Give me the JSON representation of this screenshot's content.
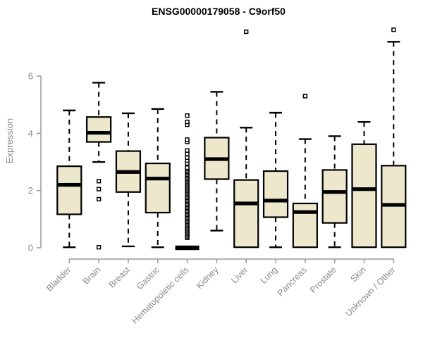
{
  "chart_data": {
    "type": "boxplot",
    "title": "ENSG00000179058 - C9orf50",
    "ylabel": "Expression",
    "xlabel": "",
    "yticks": [
      0,
      2,
      4,
      6
    ],
    "ylim": [
      -0.3,
      7.8
    ],
    "grid": false,
    "legend": "none",
    "categories": [
      "Bladder",
      "Brain",
      "Breast",
      "Gastric",
      "Hematopoietic cells",
      "Kidney",
      "Liver",
      "Lung",
      "Pancreas",
      "Prostate",
      "Skin",
      "Unknown / Other"
    ],
    "boxes": [
      {
        "category": "Bladder",
        "low": 0.02,
        "q1": 1.17,
        "median": 2.2,
        "q3": 2.85,
        "high": 4.8,
        "outliers": []
      },
      {
        "category": "Brain",
        "low": 3.0,
        "q1": 3.7,
        "median": 4.02,
        "q3": 4.57,
        "high": 5.77,
        "outliers": [
          2.33,
          2.05,
          1.7,
          0.02
        ]
      },
      {
        "category": "Breast",
        "low": 0.05,
        "q1": 1.95,
        "median": 2.65,
        "q3": 3.38,
        "high": 4.7,
        "outliers": []
      },
      {
        "category": "Gastric",
        "low": 0.02,
        "q1": 1.23,
        "median": 2.42,
        "q3": 2.95,
        "high": 4.85,
        "outliers": []
      },
      {
        "category": "Hematopoietic cells",
        "low": 0,
        "q1": 0,
        "median": 0,
        "q3": 0,
        "high": 0,
        "outliers": [
          0.35,
          0.4,
          0.45,
          0.5,
          0.55,
          0.6,
          0.65,
          0.7,
          0.75,
          0.8,
          0.85,
          0.9,
          0.95,
          1.0,
          1.05,
          1.1,
          1.15,
          1.2,
          1.25,
          1.3,
          1.35,
          1.4,
          1.45,
          1.5,
          1.55,
          1.6,
          1.65,
          1.7,
          1.75,
          1.8,
          1.85,
          1.9,
          1.95,
          2.0,
          2.05,
          2.1,
          2.15,
          2.2,
          2.25,
          2.3,
          2.35,
          2.4,
          2.45,
          2.5,
          2.55,
          2.6,
          2.65,
          2.7,
          2.75,
          2.8,
          2.95,
          3.05,
          3.15,
          3.28,
          3.4,
          3.7,
          3.78,
          4.3,
          4.4,
          4.62
        ]
      },
      {
        "category": "Kidney",
        "low": 0.6,
        "q1": 2.4,
        "median": 3.1,
        "q3": 3.85,
        "high": 5.45,
        "outliers": []
      },
      {
        "category": "Liver",
        "low": 0.02,
        "q1": 0.02,
        "median": 1.55,
        "q3": 2.37,
        "high": 4.2,
        "outliers": [
          7.55
        ]
      },
      {
        "category": "Lung",
        "low": 0.02,
        "q1": 1.07,
        "median": 1.65,
        "q3": 2.68,
        "high": 4.72,
        "outliers": []
      },
      {
        "category": "Pancreas",
        "low": 0.02,
        "q1": 0.02,
        "median": 1.25,
        "q3": 1.55,
        "high": 3.8,
        "outliers": [
          5.3
        ]
      },
      {
        "category": "Prostate",
        "low": 0.02,
        "q1": 0.87,
        "median": 1.95,
        "q3": 2.72,
        "high": 3.9,
        "outliers": []
      },
      {
        "category": "Skin",
        "low": 0.02,
        "q1": 0.02,
        "median": 2.05,
        "q3": 3.62,
        "high": 4.4,
        "outliers": []
      },
      {
        "category": "Unknown / Other",
        "low": 0.02,
        "q1": 0.02,
        "median": 1.5,
        "q3": 2.87,
        "high": 7.2,
        "outliers": [
          7.62
        ]
      }
    ],
    "colors": {
      "box_fill": "#EDE7CB",
      "box_stroke": "#000000",
      "median_color": "#000000",
      "whisker_color": "#000000",
      "outlier_color": "#000000",
      "axis_line": "#999999",
      "axis_text": "#8A8A8A",
      "title_color": "#000000",
      "background": "#FFFFFF"
    }
  }
}
